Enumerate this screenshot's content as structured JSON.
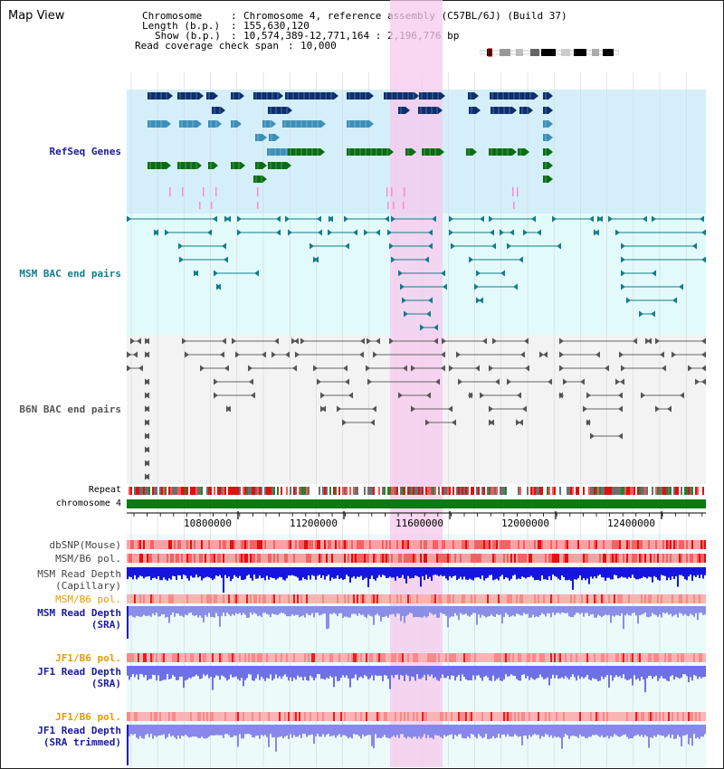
{
  "title": "Map View",
  "info": {
    "chromosome_label": "Chromosome",
    "chromosome_value": "Chromosome 4, reference assembly (C57BL/6J) (Build 37)",
    "length_label": "Length (b.p.)",
    "length_value": "155,630,120",
    "show_label": "Show (b.p.)",
    "show_value": "10,574,389-12,771,164 : 2,196,776 bp",
    "coverage_label": "Read coverage check span",
    "coverage_value": "10,000"
  },
  "tracks": {
    "refseq": "RefSeq Genes",
    "msm_bac": "MSM BAC end pairs",
    "b6n_bac": "B6N BAC end pairs",
    "repeat": "Repeat",
    "chromosome": "chromosome 4",
    "dbsnp": "dbSNP(Mouse)",
    "msm_b6_pol_1": "MSM/B6 pol.",
    "msm_read_depth_cap_1": "MSM Read Depth",
    "msm_read_depth_cap_2": "(Capillary)",
    "msm_b6_pol_2": "MSM/B6 pol.",
    "msm_read_depth_sra_1": "MSM Read Depth",
    "msm_read_depth_sra_2": "(SRA)",
    "jf1_b6_pol_1": "JF1/B6 pol.",
    "jf1_read_depth_1": "JF1 Read Depth",
    "jf1_read_depth_2": "(SRA)",
    "jf1_b6_pol_2": "JF1/B6 pol.",
    "jf1_read_depth_trim_1": "JF1 Read Depth",
    "jf1_read_depth_trim_2": "(SRA trimmed)"
  },
  "axis": {
    "ticks": [
      "10800000",
      "11200000",
      "11600000",
      "12000000",
      "12400000"
    ]
  },
  "colors": {
    "highlight": "#f7c8ec",
    "refseq_bg": "#d4effa",
    "msm_bg": "#e3fafa",
    "b6n_bg": "#f3f3f3",
    "lower_bg": "#ecfafa",
    "gene_navy": "#0d2f6e",
    "gene_steel": "#3d8fb8",
    "gene_green": "#0a6d12",
    "refseq_label": "#1a1aa0",
    "msm_label": "#127c8c",
    "b6n_label": "#555555",
    "orange_label": "#e89a00",
    "depth_blue": "#1111d8"
  }
}
